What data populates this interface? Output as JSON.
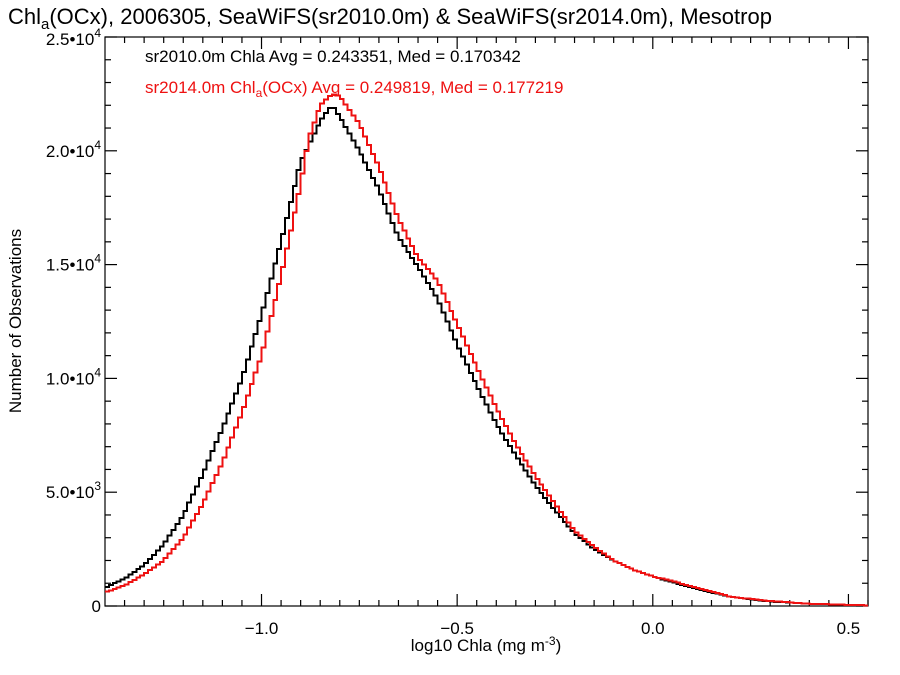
{
  "chart_data": {
    "type": "line",
    "title": {
      "pre": "Chl",
      "sub": "a",
      "post": "(OCx), 2006305, SeaWiFS(sr2010.0m) & SeaWiFS(sr2014.0m), Mesotrop"
    },
    "xlabel": {
      "pre": "log10 Chla (mg m",
      "sup": "-3",
      "post": ")"
    },
    "ylabel": "Number of Observations",
    "xlim": [
      -1.4,
      0.55
    ],
    "ylim": [
      0,
      25000
    ],
    "x_ticks": [
      {
        "value": -1.0,
        "label": "−1.0"
      },
      {
        "value": -0.5,
        "label": "−0.5"
      },
      {
        "value": 0.0,
        "label": "0.0"
      },
      {
        "value": 0.5,
        "label": "0.5"
      }
    ],
    "y_ticks": [
      {
        "value": 0,
        "mant": "0",
        "exp": ""
      },
      {
        "value": 5000,
        "mant": "5.0•10",
        "exp": "3"
      },
      {
        "value": 10000,
        "mant": "1.0•10",
        "exp": "4"
      },
      {
        "value": 15000,
        "mant": "1.5•10",
        "exp": "4"
      },
      {
        "value": 20000,
        "mant": "2.0•10",
        "exp": "4"
      },
      {
        "value": 25000,
        "mant": "2.5•10",
        "exp": "4"
      }
    ],
    "x_minor_step": 0.05,
    "y_minor_step": 1000,
    "grid": false,
    "series": [
      {
        "color": "#000000",
        "stats": {
          "pre": "sr2010.0m Chla Avg = 0.243351, Med = 0.170342",
          "sub": "",
          "post": ""
        },
        "x": [
          -1.4,
          -1.35,
          -1.3,
          -1.25,
          -1.2,
          -1.15,
          -1.1,
          -1.05,
          -1.0,
          -0.95,
          -0.9,
          -0.85,
          -0.82,
          -0.8,
          -0.75,
          -0.7,
          -0.65,
          -0.6,
          -0.55,
          -0.5,
          -0.45,
          -0.4,
          -0.35,
          -0.3,
          -0.25,
          -0.2,
          -0.15,
          -0.1,
          -0.05,
          0.0,
          0.05,
          0.1,
          0.15,
          0.2,
          0.3,
          0.4,
          0.5,
          0.55
        ],
        "y": [
          800,
          1200,
          1800,
          2700,
          4000,
          5800,
          7800,
          10000,
          12800,
          16000,
          19500,
          21300,
          22000,
          21500,
          20000,
          18300,
          16200,
          14900,
          13500,
          11500,
          9700,
          8000,
          6600,
          5300,
          4200,
          3200,
          2500,
          2000,
          1600,
          1300,
          1050,
          800,
          600,
          400,
          200,
          100,
          50,
          30
        ]
      },
      {
        "color": "#ee1111",
        "stats": {
          "pre": "sr2014.0m Chl",
          "sub": "a",
          "post": "(OCx) Avg = 0.249819, Med = 0.177219"
        },
        "x": [
          -1.4,
          -1.35,
          -1.3,
          -1.25,
          -1.2,
          -1.15,
          -1.1,
          -1.05,
          -1.0,
          -0.95,
          -0.9,
          -0.88,
          -0.85,
          -0.82,
          -0.8,
          -0.75,
          -0.7,
          -0.65,
          -0.6,
          -0.55,
          -0.5,
          -0.45,
          -0.4,
          -0.35,
          -0.3,
          -0.25,
          -0.2,
          -0.15,
          -0.1,
          -0.05,
          0.0,
          0.05,
          0.1,
          0.15,
          0.2,
          0.3,
          0.4,
          0.5,
          0.55
        ],
        "y": [
          600,
          900,
          1400,
          2000,
          3000,
          4500,
          6300,
          8500,
          11000,
          14500,
          18500,
          20500,
          22000,
          22500,
          22400,
          21200,
          19300,
          17000,
          15300,
          14300,
          12400,
          10500,
          8700,
          7100,
          5700,
          4500,
          3300,
          2600,
          2000,
          1600,
          1300,
          1100,
          850,
          650,
          400,
          220,
          100,
          50,
          30
        ]
      }
    ]
  }
}
